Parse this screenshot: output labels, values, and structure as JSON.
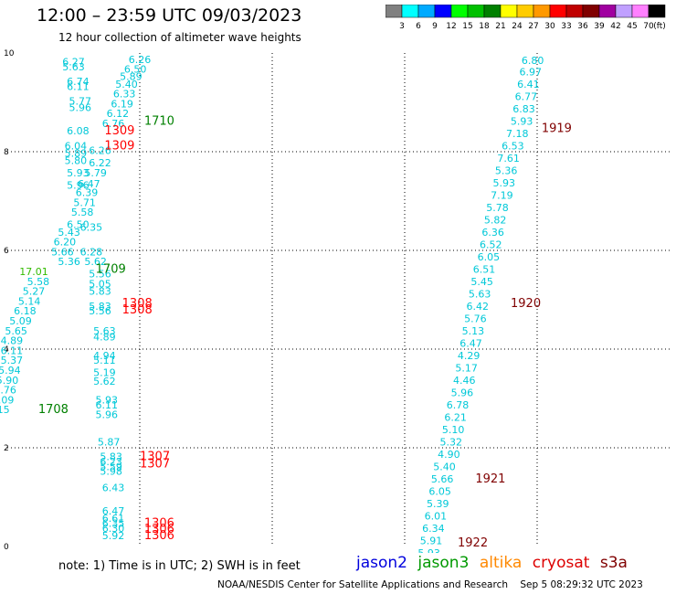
{
  "header": {
    "title": "12:00 – 23:59 UTC 09/03/2023",
    "subtitle": "12 hour collection of altimeter wave heights"
  },
  "colorbar": {
    "colors": [
      "#808080",
      "#00ffff",
      "#00aaff",
      "#0000ff",
      "#00ff00",
      "#00c000",
      "#008000",
      "#ffff00",
      "#ffcc00",
      "#ff9900",
      "#ff0000",
      "#c00000",
      "#800000",
      "#a000a0",
      "#c0a0ff",
      "#ff80ff",
      "#000000"
    ],
    "labels": [
      "3",
      "6",
      "9",
      "12",
      "15",
      "18",
      "21",
      "24",
      "27",
      "30",
      "33",
      "36",
      "39",
      "42",
      "45",
      "70"
    ],
    "unit": "(ft)"
  },
  "axes": {
    "x_ticks": [
      "-150",
      "-147",
      "-144",
      "-141",
      "-138",
      "-135"
    ],
    "y_ticks": [
      "0",
      "2",
      "4",
      "6",
      "8",
      "10"
    ]
  },
  "readings": [
    {
      "text": "6.26",
      "lon": -147.0,
      "lat": 9.8,
      "color": "#00c8d8"
    },
    {
      "text": "6.50",
      "lon": -147.1,
      "lat": 9.6,
      "color": "#00c8d8"
    },
    {
      "text": "5.89",
      "lon": -147.2,
      "lat": 9.45,
      "color": "#00c8d8"
    },
    {
      "text": "5.40",
      "lon": -147.3,
      "lat": 9.3,
      "color": "#00c8d8"
    },
    {
      "text": "6.33",
      "lon": -147.35,
      "lat": 9.1,
      "color": "#00c8d8"
    },
    {
      "text": "6.19",
      "lon": -147.4,
      "lat": 8.9,
      "color": "#00c8d8"
    },
    {
      "text": "6.12",
      "lon": -147.5,
      "lat": 8.7,
      "color": "#00c8d8"
    },
    {
      "text": "6.76",
      "lon": -147.6,
      "lat": 8.5,
      "color": "#00c8d8"
    },
    {
      "text": "6.27",
      "lon": -148.5,
      "lat": 9.75,
      "color": "#00c8d8"
    },
    {
      "text": "5.63",
      "lon": -148.5,
      "lat": 9.65,
      "color": "#00c8d8"
    },
    {
      "text": "6.74",
      "lon": -148.4,
      "lat": 9.35,
      "color": "#00c8d8"
    },
    {
      "text": "6.11",
      "lon": -148.4,
      "lat": 9.25,
      "color": "#00c8d8"
    },
    {
      "text": "5.77",
      "lon": -148.35,
      "lat": 8.95,
      "color": "#00c8d8"
    },
    {
      "text": "5.96",
      "lon": -148.35,
      "lat": 8.82,
      "color": "#00c8d8"
    },
    {
      "text": "6.08",
      "lon": -148.4,
      "lat": 8.35,
      "color": "#00c8d8"
    },
    {
      "text": "6.04",
      "lon": -148.45,
      "lat": 8.05,
      "color": "#00c8d8"
    },
    {
      "text": "5.89",
      "lon": -148.45,
      "lat": 7.9,
      "color": "#00c8d8"
    },
    {
      "text": "5.80",
      "lon": -148.45,
      "lat": 7.75,
      "color": "#00c8d8"
    },
    {
      "text": "6.26",
      "lon": -147.9,
      "lat": 7.95,
      "color": "#00c8d8"
    },
    {
      "text": "6.22",
      "lon": -147.9,
      "lat": 7.7,
      "color": "#00c8d8"
    },
    {
      "text": "5.79",
      "lon": -148.0,
      "lat": 7.5,
      "color": "#00c8d8"
    },
    {
      "text": "5.93",
      "lon": -148.4,
      "lat": 7.5,
      "color": "#00c8d8"
    },
    {
      "text": "5.96",
      "lon": -148.4,
      "lat": 7.25,
      "color": "#00c8d8"
    },
    {
      "text": "6.47",
      "lon": -148.15,
      "lat": 7.28,
      "color": "#00c8d8"
    },
    {
      "text": "6.39",
      "lon": -148.2,
      "lat": 7.1,
      "color": "#00c8d8"
    },
    {
      "text": "5.71",
      "lon": -148.25,
      "lat": 6.9,
      "color": "#00c8d8"
    },
    {
      "text": "5.58",
      "lon": -148.3,
      "lat": 6.7,
      "color": "#00c8d8"
    },
    {
      "text": "6.50",
      "lon": -148.4,
      "lat": 6.45,
      "color": "#00c8d8"
    },
    {
      "text": "6.35",
      "lon": -148.1,
      "lat": 6.4,
      "color": "#00c8d8"
    },
    {
      "text": "5.43",
      "lon": -148.6,
      "lat": 6.3,
      "color": "#00c8d8"
    },
    {
      "text": "6.20",
      "lon": -148.7,
      "lat": 6.1,
      "color": "#00c8d8"
    },
    {
      "text": "5.66",
      "lon": -148.75,
      "lat": 5.9,
      "color": "#00c8d8"
    },
    {
      "text": "6.28",
      "lon": -148.1,
      "lat": 5.9,
      "color": "#00c8d8"
    },
    {
      "text": "5.36",
      "lon": -148.6,
      "lat": 5.7,
      "color": "#00c8d8"
    },
    {
      "text": "5.62",
      "lon": -148.0,
      "lat": 5.7,
      "color": "#00c8d8"
    },
    {
      "text": "17.01",
      "lon": -149.4,
      "lat": 5.5,
      "color": "#33bb00"
    },
    {
      "text": "5.56",
      "lon": -147.9,
      "lat": 5.45,
      "color": "#00c8d8"
    },
    {
      "text": "5.58",
      "lon": -149.3,
      "lat": 5.3,
      "color": "#00c8d8"
    },
    {
      "text": "5.05",
      "lon": -147.9,
      "lat": 5.25,
      "color": "#00c8d8"
    },
    {
      "text": "5.27",
      "lon": -149.4,
      "lat": 5.1,
      "color": "#00c8d8"
    },
    {
      "text": "5.83",
      "lon": -147.9,
      "lat": 5.1,
      "color": "#00c8d8"
    },
    {
      "text": "5.14",
      "lon": -149.5,
      "lat": 4.9,
      "color": "#00c8d8"
    },
    {
      "text": "5.83",
      "lon": -147.9,
      "lat": 4.8,
      "color": "#00c8d8"
    },
    {
      "text": "5.56",
      "lon": -147.9,
      "lat": 4.7,
      "color": "#00c8d8"
    },
    {
      "text": "6.18",
      "lon": -149.6,
      "lat": 4.7,
      "color": "#00c8d8"
    },
    {
      "text": "5.09",
      "lon": -149.7,
      "lat": 4.5,
      "color": "#00c8d8"
    },
    {
      "text": "5.65",
      "lon": -149.8,
      "lat": 4.3,
      "color": "#00c8d8"
    },
    {
      "text": "5.63",
      "lon": -147.8,
      "lat": 4.3,
      "color": "#00c8d8"
    },
    {
      "text": "4.89",
      "lon": -147.8,
      "lat": 4.18,
      "color": "#00c8d8"
    },
    {
      "text": "4.89",
      "lon": -149.9,
      "lat": 4.1,
      "color": "#00c8d8"
    },
    {
      "text": "6.11",
      "lon": -149.9,
      "lat": 3.9,
      "color": "#00c8d8"
    },
    {
      "text": "4.94",
      "lon": -147.8,
      "lat": 3.8,
      "color": "#00c8d8"
    },
    {
      "text": "5.37",
      "lon": -149.9,
      "lat": 3.7,
      "color": "#00c8d8"
    },
    {
      "text": "5.11",
      "lon": -147.8,
      "lat": 3.7,
      "color": "#00c8d8"
    },
    {
      "text": "5.94",
      "lon": -149.95,
      "lat": 3.5,
      "color": "#00c8d8"
    },
    {
      "text": "5.19",
      "lon": -147.8,
      "lat": 3.45,
      "color": "#00c8d8"
    },
    {
      "text": "5.90",
      "lon": -150.0,
      "lat": 3.3,
      "color": "#00c8d8"
    },
    {
      "text": "5.62",
      "lon": -147.8,
      "lat": 3.28,
      "color": "#00c8d8"
    },
    {
      "text": "5.76",
      "lon": -150.05,
      "lat": 3.1,
      "color": "#00c8d8"
    },
    {
      "text": "6.09",
      "lon": -150.1,
      "lat": 2.9,
      "color": "#00c8d8"
    },
    {
      "text": "5.93",
      "lon": -147.75,
      "lat": 2.9,
      "color": "#00c8d8"
    },
    {
      "text": "6.11",
      "lon": -147.75,
      "lat": 2.8,
      "color": "#00c8d8"
    },
    {
      "text": "5.15",
      "lon": -150.2,
      "lat": 2.7,
      "color": "#00c8d8"
    },
    {
      "text": "5.96",
      "lon": -147.75,
      "lat": 2.6,
      "color": "#00c8d8"
    },
    {
      "text": "5.87",
      "lon": -147.7,
      "lat": 2.05,
      "color": "#00c8d8"
    },
    {
      "text": "5.83",
      "lon": -147.65,
      "lat": 1.75,
      "color": "#00c8d8"
    },
    {
      "text": "6.23",
      "lon": -147.65,
      "lat": 1.65,
      "color": "#00c8d8"
    },
    {
      "text": "5.59",
      "lon": -147.65,
      "lat": 1.55,
      "color": "#00c8d8"
    },
    {
      "text": "5.98",
      "lon": -147.65,
      "lat": 1.45,
      "color": "#00c8d8"
    },
    {
      "text": "6.43",
      "lon": -147.6,
      "lat": 1.12,
      "color": "#00c8d8"
    },
    {
      "text": "6.47",
      "lon": -147.6,
      "lat": 0.65,
      "color": "#00c8d8"
    },
    {
      "text": "6.61",
      "lon": -147.6,
      "lat": 0.5,
      "color": "#00c8d8"
    },
    {
      "text": "6.35",
      "lon": -147.6,
      "lat": 0.4,
      "color": "#00c8d8"
    },
    {
      "text": "6.30",
      "lon": -147.6,
      "lat": 0.3,
      "color": "#00c8d8"
    },
    {
      "text": "5.92",
      "lon": -147.6,
      "lat": 0.15,
      "color": "#00c8d8"
    },
    {
      "text": "6.80",
      "lon": -138.1,
      "lat": 9.78,
      "color": "#00c8d8"
    },
    {
      "text": "6.97",
      "lon": -138.15,
      "lat": 9.55,
      "color": "#00c8d8"
    },
    {
      "text": "6.41",
      "lon": -138.2,
      "lat": 9.3,
      "color": "#00c8d8"
    },
    {
      "text": "6.77",
      "lon": -138.25,
      "lat": 9.05,
      "color": "#00c8d8"
    },
    {
      "text": "6.83",
      "lon": -138.3,
      "lat": 8.8,
      "color": "#00c8d8"
    },
    {
      "text": "5.93",
      "lon": -138.35,
      "lat": 8.55,
      "color": "#00c8d8"
    },
    {
      "text": "7.18",
      "lon": -138.45,
      "lat": 8.3,
      "color": "#00c8d8"
    },
    {
      "text": "6.53",
      "lon": -138.55,
      "lat": 8.05,
      "color": "#00c8d8"
    },
    {
      "text": "7.61",
      "lon": -138.65,
      "lat": 7.8,
      "color": "#00c8d8"
    },
    {
      "text": "5.36",
      "lon": -138.7,
      "lat": 7.55,
      "color": "#00c8d8"
    },
    {
      "text": "5.93",
      "lon": -138.75,
      "lat": 7.3,
      "color": "#00c8d8"
    },
    {
      "text": "7.19",
      "lon": -138.8,
      "lat": 7.05,
      "color": "#00c8d8"
    },
    {
      "text": "5.78",
      "lon": -138.9,
      "lat": 6.8,
      "color": "#00c8d8"
    },
    {
      "text": "5.82",
      "lon": -138.95,
      "lat": 6.55,
      "color": "#00c8d8"
    },
    {
      "text": "6.36",
      "lon": -139.0,
      "lat": 6.3,
      "color": "#00c8d8"
    },
    {
      "text": "6.52",
      "lon": -139.05,
      "lat": 6.05,
      "color": "#00c8d8"
    },
    {
      "text": "6.05",
      "lon": -139.1,
      "lat": 5.8,
      "color": "#00c8d8"
    },
    {
      "text": "6.51",
      "lon": -139.2,
      "lat": 5.55,
      "color": "#00c8d8"
    },
    {
      "text": "5.45",
      "lon": -139.25,
      "lat": 5.3,
      "color": "#00c8d8"
    },
    {
      "text": "5.63",
      "lon": -139.3,
      "lat": 5.05,
      "color": "#00c8d8"
    },
    {
      "text": "6.42",
      "lon": -139.35,
      "lat": 4.8,
      "color": "#00c8d8"
    },
    {
      "text": "5.76",
      "lon": -139.4,
      "lat": 4.55,
      "color": "#00c8d8"
    },
    {
      "text": "5.13",
      "lon": -139.45,
      "lat": 4.3,
      "color": "#00c8d8"
    },
    {
      "text": "6.47",
      "lon": -139.5,
      "lat": 4.05,
      "color": "#00c8d8"
    },
    {
      "text": "4.29",
      "lon": -139.55,
      "lat": 3.8,
      "color": "#00c8d8"
    },
    {
      "text": "5.17",
      "lon": -139.6,
      "lat": 3.55,
      "color": "#00c8d8"
    },
    {
      "text": "4.46",
      "lon": -139.65,
      "lat": 3.3,
      "color": "#00c8d8"
    },
    {
      "text": "5.96",
      "lon": -139.7,
      "lat": 3.05,
      "color": "#00c8d8"
    },
    {
      "text": "6.78",
      "lon": -139.8,
      "lat": 2.8,
      "color": "#00c8d8"
    },
    {
      "text": "6.21",
      "lon": -139.85,
      "lat": 2.55,
      "color": "#00c8d8"
    },
    {
      "text": "5.10",
      "lon": -139.9,
      "lat": 2.3,
      "color": "#00c8d8"
    },
    {
      "text": "5.32",
      "lon": -139.95,
      "lat": 2.05,
      "color": "#00c8d8"
    },
    {
      "text": "4.90",
      "lon": -140.0,
      "lat": 1.8,
      "color": "#00c8d8"
    },
    {
      "text": "5.40",
      "lon": -140.1,
      "lat": 1.55,
      "color": "#00c8d8"
    },
    {
      "text": "5.66",
      "lon": -140.15,
      "lat": 1.3,
      "color": "#00c8d8"
    },
    {
      "text": "6.05",
      "lon": -140.2,
      "lat": 1.05,
      "color": "#00c8d8"
    },
    {
      "text": "5.39",
      "lon": -140.25,
      "lat": 0.8,
      "color": "#00c8d8"
    },
    {
      "text": "6.01",
      "lon": -140.3,
      "lat": 0.55,
      "color": "#00c8d8"
    },
    {
      "text": "6.34",
      "lon": -140.35,
      "lat": 0.3,
      "color": "#00c8d8"
    },
    {
      "text": "5.91",
      "lon": -140.4,
      "lat": 0.05,
      "color": "#00c8d8"
    },
    {
      "text": "5.93",
      "lon": -140.45,
      "lat": -0.2,
      "color": "#00c8d8"
    },
    {
      "text": "6.78",
      "lon": -140.5,
      "lat": -0.45,
      "color": "#00c8d8"
    }
  ],
  "pass_labels": [
    {
      "text": "1710",
      "lon": -146.9,
      "lat": 8.55,
      "color": "#008000"
    },
    {
      "text": "1309",
      "lon": -147.8,
      "lat": 8.35,
      "color": "#ff0000"
    },
    {
      "text": "1309",
      "lon": -147.8,
      "lat": 8.05,
      "color": "#ff0000"
    },
    {
      "text": "1709",
      "lon": -148.0,
      "lat": 5.55,
      "color": "#008000"
    },
    {
      "text": "1308",
      "lon": -147.4,
      "lat": 4.85,
      "color": "#ff0000"
    },
    {
      "text": "1308",
      "lon": -147.4,
      "lat": 4.72,
      "color": "#ff0000"
    },
    {
      "text": "1708",
      "lon": -149.3,
      "lat": 2.7,
      "color": "#008000"
    },
    {
      "text": "1307",
      "lon": -147.0,
      "lat": 1.75,
      "color": "#ff0000"
    },
    {
      "text": "1307",
      "lon": -147.0,
      "lat": 1.6,
      "color": "#ff0000"
    },
    {
      "text": "1306",
      "lon": -146.9,
      "lat": 0.4,
      "color": "#ff0000"
    },
    {
      "text": "1306",
      "lon": -146.9,
      "lat": 0.28,
      "color": "#ff0000"
    },
    {
      "text": "1306",
      "lon": -146.9,
      "lat": 0.15,
      "color": "#ff0000"
    },
    {
      "text": "1919",
      "lon": -137.9,
      "lat": 8.4,
      "color": "#800000"
    },
    {
      "text": "1920",
      "lon": -138.6,
      "lat": 4.85,
      "color": "#800000"
    },
    {
      "text": "1921",
      "lon": -139.4,
      "lat": 1.3,
      "color": "#800000"
    },
    {
      "text": "1922",
      "lon": -139.8,
      "lat": 0.0,
      "color": "#800000"
    }
  ],
  "note": "note:  1) Time is in UTC;  2) SWH is in feet",
  "legend": [
    {
      "name": "jason2",
      "color": "#0000dd"
    },
    {
      "name": "jason3",
      "color": "#009900"
    },
    {
      "name": "altika",
      "color": "#ff8800"
    },
    {
      "name": "cryosat",
      "color": "#dd0000"
    },
    {
      "name": "s3a",
      "color": "#800000"
    }
  ],
  "footer": {
    "agency": "NOAA/NESDIS Center for Satellite Applications and Research",
    "timestamp": "Sep  5 08:29:32 UTC 2023"
  }
}
